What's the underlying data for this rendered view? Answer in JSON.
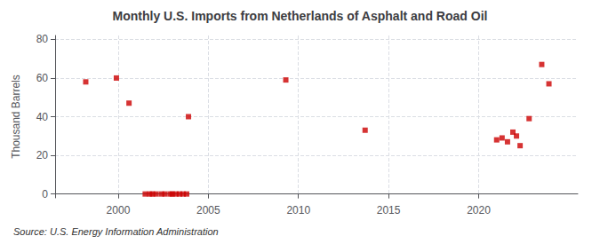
{
  "chart_data": {
    "type": "scatter",
    "title": "Monthly U.S. Imports from Netherlands of Asphalt and Road Oil",
    "ylabel": "Thousand Barrels",
    "annotations": [
      "Source: U.S. Energy Information Administration"
    ],
    "color": "#cc0000",
    "marker": "square",
    "grid": true,
    "xlim": [
      1996.5,
      2025.5
    ],
    "ylim": [
      -2,
      82
    ],
    "xticks": [
      2000,
      2005,
      2010,
      2015,
      2020
    ],
    "yticks": [
      0,
      20,
      40,
      60,
      80
    ],
    "x": [
      1998.2,
      1999.9,
      2000.6,
      2001.5,
      2001.75,
      2001.9,
      2002.1,
      2002.4,
      2002.6,
      2002.9,
      2003.0,
      2003.2,
      2003.4,
      2003.6,
      2003.8,
      2003.9,
      2009.3,
      2013.7,
      2021.0,
      2021.3,
      2021.6,
      2021.9,
      2022.1,
      2022.3,
      2022.8,
      2023.5,
      2023.9
    ],
    "values": [
      58,
      60,
      47,
      0,
      0,
      0,
      0,
      0,
      0,
      0,
      0,
      0,
      0,
      0,
      0,
      40,
      59,
      33,
      28,
      29,
      27,
      32,
      30,
      25,
      39,
      67,
      57
    ]
  }
}
